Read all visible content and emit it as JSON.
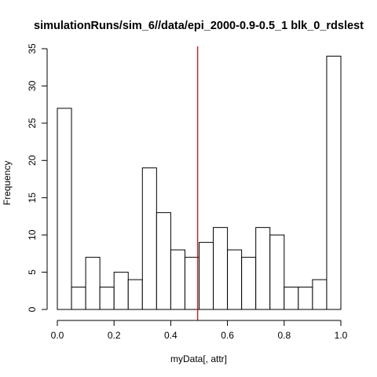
{
  "chart_data": {
    "type": "bar",
    "title": "simulationRuns/sim_6//data/epi_2000-0.9-0.5_1 blk_0_rdslest",
    "xlabel": "myData[, attr]",
    "ylabel": "Frequency",
    "bin_edges": [
      0.0,
      0.05,
      0.1,
      0.15,
      0.2,
      0.25,
      0.3,
      0.35,
      0.4,
      0.45,
      0.5,
      0.55,
      0.6,
      0.65,
      0.7,
      0.75,
      0.8,
      0.85,
      0.9,
      0.95,
      1.0
    ],
    "values": [
      27,
      3,
      7,
      3,
      5,
      4,
      19,
      13,
      8,
      7,
      9,
      11,
      8,
      7,
      11,
      10,
      3,
      3,
      4,
      34
    ],
    "xlim": [
      0.0,
      1.0
    ],
    "ylim": [
      0,
      35
    ],
    "x_ticks": [
      0.0,
      0.2,
      0.4,
      0.6,
      0.8,
      1.0
    ],
    "x_tick_labels": [
      "0.0",
      "0.2",
      "0.4",
      "0.6",
      "0.8",
      "1.0"
    ],
    "y_ticks": [
      0,
      5,
      10,
      15,
      20,
      25,
      30,
      35
    ],
    "y_tick_labels": [
      "0",
      "5",
      "10",
      "15",
      "20",
      "25",
      "30",
      "35"
    ],
    "reference_line": {
      "x": 0.495,
      "color": "#cc0000"
    },
    "grid": false
  }
}
